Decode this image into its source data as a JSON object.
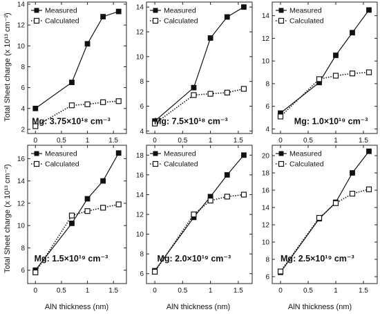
{
  "figure": {
    "ylabel": "Total Sheet charge (x 10¹³ cm⁻²)",
    "xlabel": "AlN thickness (nm)"
  },
  "legend": {
    "measured": "Measured",
    "calculated": "Calculated"
  },
  "chart_data": [
    {
      "type": "line",
      "annotation": "Mg: 3.75×10¹⁸ cm⁻³",
      "x": [
        0,
        0.7,
        1,
        1.3,
        1.6
      ],
      "xlim": [
        -0.15,
        1.75
      ],
      "xticks": [
        0,
        0.5,
        1,
        1.5
      ],
      "ylim": [
        1.6,
        14.2
      ],
      "yticks": [
        2,
        4,
        6,
        8,
        10,
        12,
        14
      ],
      "series": [
        {
          "name": "Measured",
          "style": "solid",
          "marker": "filled-square",
          "values": [
            4.0,
            6.5,
            10.2,
            12.8,
            13.3
          ]
        },
        {
          "name": "Calculated",
          "style": "dotted",
          "marker": "open-square",
          "values": [
            2.3,
            4.3,
            4.4,
            4.6,
            4.7
          ]
        }
      ]
    },
    {
      "type": "line",
      "annotation": "Mg: 7.5×10¹⁸ cm⁻³",
      "x": [
        0,
        0.7,
        1,
        1.3,
        1.6
      ],
      "xlim": [
        -0.15,
        1.75
      ],
      "xticks": [
        0,
        0.5,
        1,
        1.5
      ],
      "ylim": [
        3.8,
        14.4
      ],
      "yticks": [
        4,
        6,
        8,
        10,
        12,
        14
      ],
      "series": [
        {
          "name": "Measured",
          "style": "solid",
          "marker": "filled-square",
          "values": [
            4.8,
            7.5,
            11.5,
            13.2,
            14.0
          ]
        },
        {
          "name": "Calculated",
          "style": "dotted",
          "marker": "open-square",
          "values": [
            4.6,
            6.9,
            7.0,
            7.1,
            7.4
          ]
        }
      ]
    },
    {
      "type": "line",
      "annotation": "Mg: 1.0×10¹⁹ cm⁻³",
      "x": [
        0,
        0.7,
        1,
        1.3,
        1.6
      ],
      "xlim": [
        -0.15,
        1.75
      ],
      "xticks": [
        0,
        0.5,
        1,
        1.5
      ],
      "ylim": [
        3.6,
        15.2
      ],
      "yticks": [
        4,
        6,
        8,
        10,
        12,
        14
      ],
      "series": [
        {
          "name": "Measured",
          "style": "solid",
          "marker": "filled-square",
          "values": [
            5.4,
            8.1,
            10.5,
            12.5,
            14.5
          ]
        },
        {
          "name": "Calculated",
          "style": "dotted",
          "marker": "open-square",
          "values": [
            5.1,
            8.4,
            8.7,
            8.9,
            9.0
          ]
        }
      ]
    },
    {
      "type": "line",
      "annotation": "Mg: 1.5×10¹⁹ cm⁻³",
      "x": [
        0,
        0.7,
        1,
        1.3,
        1.6
      ],
      "xlim": [
        -0.15,
        1.75
      ],
      "xticks": [
        0,
        0.5,
        1,
        1.5
      ],
      "ylim": [
        4.8,
        17.2
      ],
      "yticks": [
        6,
        8,
        10,
        12,
        14,
        16
      ],
      "series": [
        {
          "name": "Measured",
          "style": "solid",
          "marker": "filled-square",
          "values": [
            6.0,
            10.2,
            12.4,
            14.0,
            16.5
          ]
        },
        {
          "name": "Calculated",
          "style": "dotted",
          "marker": "open-square",
          "values": [
            5.8,
            10.9,
            11.3,
            11.6,
            11.9
          ]
        }
      ]
    },
    {
      "type": "line",
      "annotation": "Mg: 2.0×10¹⁹ cm⁻³",
      "x": [
        0,
        0.7,
        1,
        1.3,
        1.6
      ],
      "xlim": [
        -0.15,
        1.75
      ],
      "xticks": [
        0,
        0.5,
        1,
        1.5
      ],
      "ylim": [
        5.0,
        19.0
      ],
      "yticks": [
        6,
        8,
        10,
        12,
        14,
        16,
        18
      ],
      "series": [
        {
          "name": "Measured",
          "style": "solid",
          "marker": "filled-square",
          "values": [
            6.3,
            11.7,
            13.8,
            16.0,
            18.0
          ]
        },
        {
          "name": "Calculated",
          "style": "dotted",
          "marker": "open-square",
          "values": [
            6.2,
            12.0,
            13.4,
            13.8,
            14.0
          ]
        }
      ]
    },
    {
      "type": "line",
      "annotation": "Mg: 2.5×10¹⁹ cm⁻³",
      "x": [
        0,
        0.7,
        1,
        1.3,
        1.6
      ],
      "xlim": [
        -0.15,
        1.75
      ],
      "xticks": [
        0,
        0.5,
        1,
        1.5
      ],
      "ylim": [
        5.2,
        21.2
      ],
      "yticks": [
        6,
        8,
        10,
        12,
        14,
        16,
        18,
        20
      ],
      "series": [
        {
          "name": "Measured",
          "style": "solid",
          "marker": "filled-square",
          "values": [
            6.5,
            12.7,
            14.6,
            18.0,
            20.5
          ]
        },
        {
          "name": "Calculated",
          "style": "dotted",
          "marker": "open-square",
          "values": [
            6.6,
            12.8,
            14.5,
            15.6,
            16.1
          ]
        }
      ]
    }
  ]
}
